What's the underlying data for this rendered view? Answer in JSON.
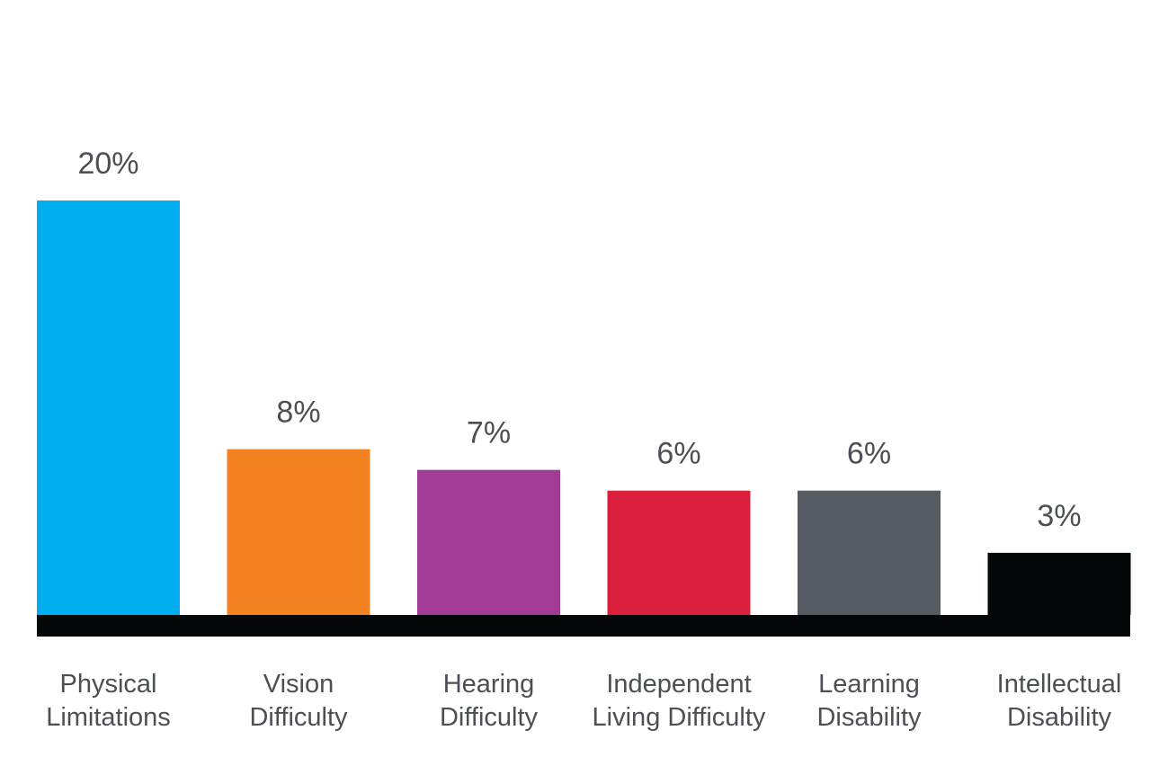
{
  "chart_data": {
    "type": "bar",
    "categories": [
      [
        "Physical",
        "Limitations"
      ],
      [
        "Vision",
        "Difficulty"
      ],
      [
        "Hearing",
        "Difficulty"
      ],
      [
        "Independent",
        "Living Difficulty"
      ],
      [
        "Learning",
        "Disability"
      ],
      [
        "Intellectual",
        "Disability"
      ]
    ],
    "values": [
      20,
      8,
      7,
      6,
      6,
      3
    ],
    "value_labels": [
      "20%",
      "8%",
      "7%",
      "6%",
      "6%",
      "3%"
    ],
    "colors": [
      "#00aeef",
      "#f58220",
      "#a23b93",
      "#da1f3d",
      "#565a63",
      "#050808"
    ],
    "baseline_color": "#050808",
    "ylim": [
      0,
      20
    ],
    "title": "",
    "xlabel": "",
    "ylabel": "",
    "grid": false,
    "legend": "none"
  }
}
